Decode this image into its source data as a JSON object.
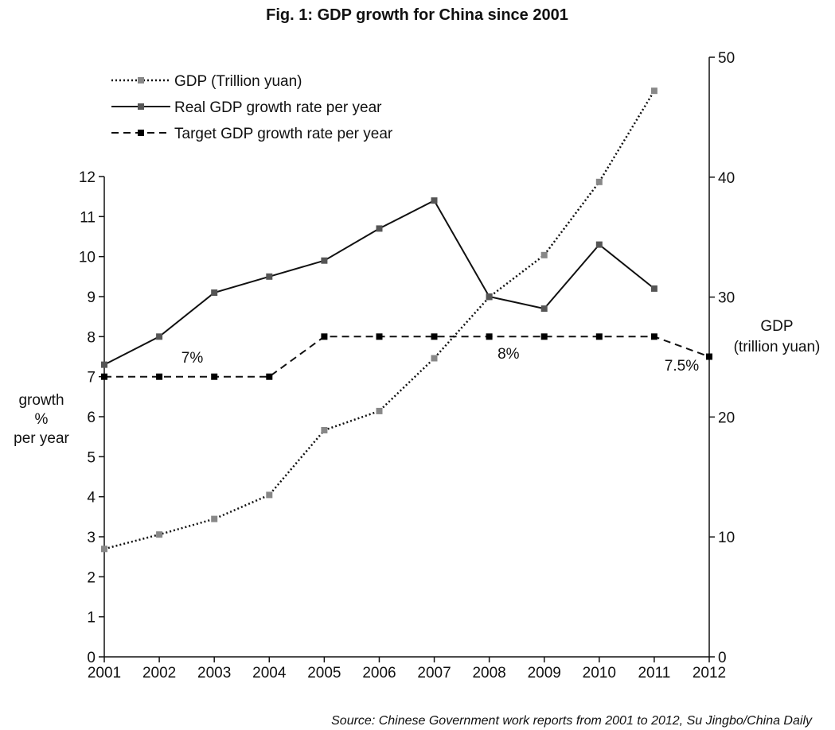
{
  "chart_data": {
    "type": "line",
    "title": "Fig. 1:  GDP growth for China since 2001",
    "source": "Source: Chinese Government work reports from 2001 to 2012, Su Jingbo/China Daily",
    "x": [
      2001,
      2002,
      2003,
      2004,
      2005,
      2006,
      2007,
      2008,
      2009,
      2010,
      2011,
      2012
    ],
    "x_tick_labels": [
      "2001",
      "2002",
      "2003",
      "2004",
      "2005",
      "2006",
      "2007",
      "2008",
      "2009",
      "2010",
      "2011",
      "2012"
    ],
    "y_left": {
      "label_lines": [
        "growth",
        "%",
        "per year"
      ],
      "ylim": [
        0,
        12
      ],
      "ticks": [
        "0",
        "1",
        "2",
        "3",
        "4",
        "5",
        "6",
        "7",
        "8",
        "9",
        "10",
        "11",
        "12"
      ]
    },
    "y_right": {
      "label_lines": [
        "GDP",
        "(trillion yuan)"
      ],
      "ylim": [
        0,
        50
      ],
      "ticks": [
        "0",
        "10",
        "20",
        "30",
        "40",
        "50"
      ]
    },
    "series": [
      {
        "name": "GDP (Trillion yuan)",
        "axis": "right",
        "style": "dotted",
        "color": "#888888",
        "x": [
          2001,
          2002,
          2003,
          2004,
          2005,
          2006,
          2007,
          2008,
          2009,
          2010,
          2011
        ],
        "values": [
          9.0,
          10.2,
          11.5,
          13.5,
          18.9,
          20.5,
          24.9,
          30.0,
          33.5,
          39.6,
          47.2
        ]
      },
      {
        "name": "Real GDP growth rate per year",
        "axis": "left",
        "style": "solid",
        "color": "#555555",
        "x": [
          2001,
          2002,
          2003,
          2004,
          2005,
          2006,
          2007,
          2008,
          2009,
          2010,
          2011
        ],
        "values": [
          7.3,
          8.0,
          9.1,
          9.5,
          9.9,
          10.7,
          11.4,
          9.0,
          8.7,
          10.3,
          9.2
        ]
      },
      {
        "name": "Target GDP growth rate per year",
        "axis": "left",
        "style": "dashed",
        "color": "#000000",
        "x": [
          2001,
          2002,
          2003,
          2004,
          2005,
          2006,
          2007,
          2008,
          2009,
          2010,
          2011,
          2012
        ],
        "values": [
          7,
          7,
          7,
          7,
          8,
          8,
          8,
          8,
          8,
          8,
          8,
          7.5
        ]
      }
    ],
    "annotations": [
      {
        "text": "7%",
        "x": 2002.6,
        "y": 7.35
      },
      {
        "text": "8%",
        "x": 2008.35,
        "y": 7.45
      },
      {
        "text": "7.5%",
        "x": 2011.5,
        "y": 7.15
      }
    ],
    "legend": "top-left",
    "grid": false
  }
}
